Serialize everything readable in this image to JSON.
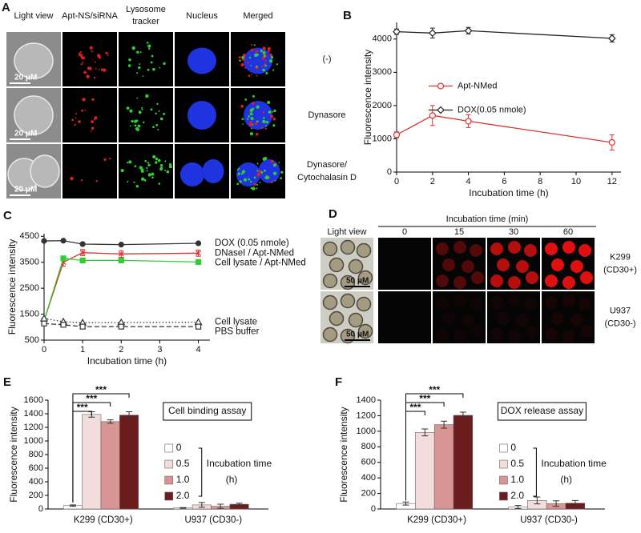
{
  "panel_a": {
    "label": "A",
    "columns": [
      "Light view",
      "Apt-NS/siRNA",
      [
        "Lysosome",
        "tracker"
      ],
      "Nucleus",
      "Merged"
    ],
    "rows": [
      "(-)",
      "Dynasore",
      [
        "Dynasore/",
        "Cytochalasin D"
      ]
    ],
    "scale_bar": "20 μM"
  },
  "panel_d": {
    "label": "D",
    "title": "Incubation time (min)",
    "columns": [
      "Light view",
      "0",
      "15",
      "30",
      "60"
    ],
    "rows": [
      [
        "K299",
        "(CD30+)"
      ],
      [
        "U937",
        "(CD30-)"
      ]
    ],
    "scale_bar": "50 μM"
  },
  "chart_data": [
    {
      "panel": "B",
      "type": "line",
      "xlabel": "Incubation time (h)",
      "ylabel": "Fluorescence intensity",
      "x": [
        0,
        2,
        4,
        12
      ],
      "xlim": [
        0,
        12.5
      ],
      "xticks": [
        0,
        2,
        4,
        6,
        8,
        10,
        12
      ],
      "ylim": [
        0,
        4500
      ],
      "yticks": [
        0,
        1000,
        2000,
        3000,
        4000
      ],
      "grid": false,
      "legend": "center",
      "series": [
        {
          "name": "Apt-NMed",
          "color": "#e03030",
          "marker": "circle-open",
          "dash": "solid",
          "values": [
            1120,
            1700,
            1530,
            890
          ],
          "errors": [
            90,
            300,
            190,
            230
          ]
        },
        {
          "name": "DOX(0.05 nmole)",
          "color": "#222222",
          "marker": "diamond-open",
          "dash": "solid",
          "values": [
            4220,
            4180,
            4250,
            4020
          ],
          "errors": [
            80,
            150,
            100,
            110
          ]
        }
      ]
    },
    {
      "panel": "C",
      "type": "line",
      "xlabel": "Incubation time (h)",
      "ylabel": "Fluorescence intensity",
      "x": [
        0,
        0.5,
        1,
        2,
        4
      ],
      "xlim": [
        0,
        4.3
      ],
      "xticks": [
        0,
        1,
        2,
        3,
        4
      ],
      "ylim": [
        500,
        4600
      ],
      "yticks": [
        500,
        1500,
        2500,
        3500,
        4500
      ],
      "grid": false,
      "legend": "right",
      "series": [
        {
          "name": "DOX (0.05 nmole)",
          "color": "#333333",
          "marker": "circle",
          "dash": "solid",
          "values": [
            4320,
            4330,
            4200,
            4180,
            4230
          ]
        },
        {
          "name": "DNaseI / Apt-NMed",
          "color": "#e03030",
          "marker": "x",
          "dash": "solid",
          "values": [
            1250,
            3500,
            3870,
            3820,
            3850
          ],
          "errors": [
            60,
            150,
            120,
            130,
            120
          ]
        },
        {
          "name": "Cell lysate / Apt-NMed",
          "color": "#33cc33",
          "marker": "square",
          "dash": "solid",
          "values": [
            1250,
            3650,
            3570,
            3570,
            3510
          ]
        },
        {
          "name": "Cell lysate",
          "color": "#333333",
          "marker": "triangle-open",
          "dash": "dotted",
          "values": [
            1330,
            1210,
            1170,
            1180,
            1190
          ]
        },
        {
          "name": "PBS buffer",
          "color": "#333333",
          "marker": "square-open",
          "dash": "dashed",
          "values": [
            1140,
            1090,
            1020,
            1020,
            1020
          ]
        }
      ]
    },
    {
      "panel": "E",
      "type": "bar",
      "ylabel": "Fluorescence intensity",
      "categories": [
        "K299 (CD30+)",
        "U937 (CD30-)"
      ],
      "ylim": [
        0,
        1600
      ],
      "yticks": [
        0,
        200,
        400,
        600,
        800,
        1000,
        1200,
        1400,
        1600
      ],
      "grid": false,
      "annotation": "Cell binding assay",
      "legend_title": [
        "Incubation time",
        "(h)"
      ],
      "significance": [
        "***",
        "***",
        "***"
      ],
      "series": [
        {
          "name": "0",
          "color": "#ffffff",
          "values": [
            50,
            15
          ],
          "errors": [
            10,
            5
          ]
        },
        {
          "name": "0.5",
          "color": "#f3dcdc",
          "values": [
            1390,
            60
          ],
          "errors": [
            40,
            35
          ]
        },
        {
          "name": "1.0",
          "color": "#d99594",
          "values": [
            1285,
            40
          ],
          "errors": [
            25,
            30
          ]
        },
        {
          "name": "2.0",
          "color": "#6b1c1c",
          "values": [
            1380,
            70
          ],
          "errors": [
            50,
            15
          ]
        }
      ]
    },
    {
      "panel": "F",
      "type": "bar",
      "ylabel": "Fluorescence intensity",
      "categories": [
        "K299 (CD30+)",
        "U937 (CD30-)"
      ],
      "ylim": [
        0,
        1400
      ],
      "yticks": [
        0,
        200,
        400,
        600,
        800,
        1000,
        1200,
        1400
      ],
      "grid": false,
      "annotation": "DOX release assay",
      "legend_title": [
        "Incubation time",
        "(h)"
      ],
      "significance": [
        "***",
        "***",
        "***"
      ],
      "series": [
        {
          "name": "0",
          "color": "#ffffff",
          "values": [
            70,
            25
          ],
          "errors": [
            20,
            20
          ]
        },
        {
          "name": "0.5",
          "color": "#f3dcdc",
          "values": [
            985,
            110
          ],
          "errors": [
            45,
            45
          ]
        },
        {
          "name": "1.0",
          "color": "#d99594",
          "values": [
            1085,
            70
          ],
          "errors": [
            45,
            35
          ]
        },
        {
          "name": "2.0",
          "color": "#6b1c1c",
          "values": [
            1205,
            75
          ],
          "errors": [
            40,
            35
          ]
        }
      ]
    }
  ]
}
